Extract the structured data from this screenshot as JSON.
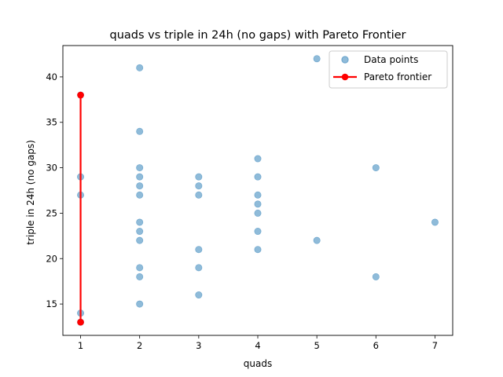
{
  "chart_data": {
    "type": "scatter",
    "title": "quads vs triple in 24h (no gaps) with Pareto Frontier",
    "xlabel": "quads",
    "ylabel": "triple in 24h (no gaps)",
    "xlim": [
      0.7,
      7.3
    ],
    "ylim": [
      11.55,
      43.45
    ],
    "xticks": [
      1,
      2,
      3,
      4,
      5,
      6,
      7
    ],
    "yticks": [
      15,
      20,
      25,
      30,
      35,
      40
    ],
    "grid": false,
    "legend_position": "top-right",
    "series": [
      {
        "name": "Data points",
        "type": "scatter",
        "color": "#1f77b4",
        "opacity": 0.5,
        "points": [
          [
            1,
            29
          ],
          [
            1,
            27
          ],
          [
            1,
            14
          ],
          [
            1,
            38
          ],
          [
            1,
            13
          ],
          [
            2,
            41
          ],
          [
            2,
            34
          ],
          [
            2,
            30
          ],
          [
            2,
            29
          ],
          [
            2,
            28
          ],
          [
            2,
            27
          ],
          [
            2,
            24
          ],
          [
            2,
            23
          ],
          [
            2,
            22
          ],
          [
            2,
            19
          ],
          [
            2,
            18
          ],
          [
            2,
            15
          ],
          [
            3,
            29
          ],
          [
            3,
            28
          ],
          [
            3,
            27
          ],
          [
            3,
            21
          ],
          [
            3,
            19
          ],
          [
            3,
            16
          ],
          [
            4,
            31
          ],
          [
            4,
            29
          ],
          [
            4,
            27
          ],
          [
            4,
            26
          ],
          [
            4,
            25
          ],
          [
            4,
            23
          ],
          [
            4,
            21
          ],
          [
            5,
            42
          ],
          [
            5,
            22
          ],
          [
            6,
            30
          ],
          [
            6,
            18
          ],
          [
            7,
            24
          ]
        ]
      },
      {
        "name": "Pareto frontier",
        "type": "line",
        "color": "#ff0000",
        "points": [
          [
            1,
            38
          ],
          [
            1,
            13
          ]
        ]
      }
    ]
  }
}
